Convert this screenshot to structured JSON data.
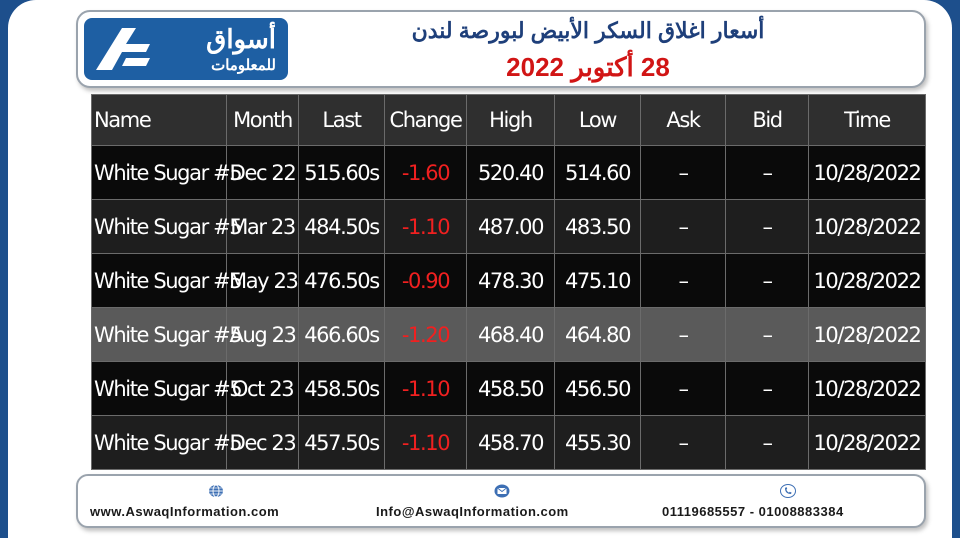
{
  "header": {
    "logo_arabic_main": "أسواق",
    "logo_arabic_sub": "للمعلومات",
    "title": "أسعار اغلاق السكر الأبيض لبورصة لندن",
    "subtitle": "28 أكتوبر 2022"
  },
  "table": {
    "columns": [
      "Name",
      "Month",
      "Last",
      "Change",
      "High",
      "Low",
      "Ask",
      "Bid",
      "Time"
    ],
    "rows": [
      {
        "name": "White Sugar #5",
        "month": "Dec 22",
        "last": "515.60s",
        "change": "-1.60",
        "high": "520.40",
        "low": "514.60",
        "ask": "–",
        "bid": "–",
        "time": "10/28/2022"
      },
      {
        "name": "White Sugar #5",
        "month": "Mar 23",
        "last": "484.50s",
        "change": "-1.10",
        "high": "487.00",
        "low": "483.50",
        "ask": "–",
        "bid": "–",
        "time": "10/28/2022"
      },
      {
        "name": "White Sugar #5",
        "month": "May 23",
        "last": "476.50s",
        "change": "-0.90",
        "high": "478.30",
        "low": "475.10",
        "ask": "–",
        "bid": "–",
        "time": "10/28/2022"
      },
      {
        "name": "White Sugar #5",
        "month": "Aug 23",
        "last": "466.60s",
        "change": "-1.20",
        "high": "468.40",
        "low": "464.80",
        "ask": "–",
        "bid": "–",
        "time": "10/28/2022"
      },
      {
        "name": "White Sugar #5",
        "month": "Oct 23",
        "last": "458.50s",
        "change": "-1.10",
        "high": "458.50",
        "low": "456.50",
        "ask": "–",
        "bid": "–",
        "time": "10/28/2022"
      },
      {
        "name": "White Sugar #5",
        "month": "Dec 23",
        "last": "457.50s",
        "change": "-1.10",
        "high": "458.70",
        "low": "455.30",
        "ask": "–",
        "bid": "–",
        "time": "10/28/2022"
      }
    ]
  },
  "footer": {
    "website": "www.AswaqInformation.com",
    "email": "Info@AswaqInformation.com",
    "phones": "01119685557 - 01008883384"
  },
  "icons": {
    "website": "globe-icon",
    "email": "envelope-icon",
    "phone": "phone-icon"
  },
  "colors": {
    "brand_blue": "#1e5fa3",
    "title_blue": "#1e3f7a",
    "date_red": "#d11515",
    "negative_change": "#f02020"
  }
}
